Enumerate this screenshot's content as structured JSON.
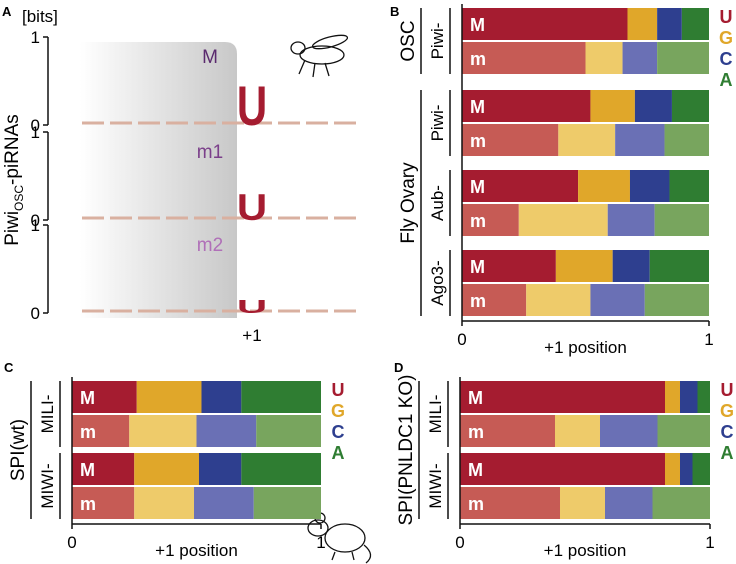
{
  "chart_data": [
    {
      "type": "logo",
      "panel": "A",
      "unit": "[bits]",
      "y_label": {
        "main": "Piwi",
        "sub": "OSC",
        "suffix": "-piRNAs"
      },
      "x_label": "+1",
      "ylim": [
        0,
        1
      ],
      "yticks": [
        0,
        1
      ],
      "color": "#a51c30",
      "rows": [
        {
          "name": "M",
          "letter": "U",
          "value": 0.45,
          "label_color": "#5a2a6e"
        },
        {
          "name": "m1",
          "letter": "U",
          "value": 0.3,
          "label_color": "#7b3f8a"
        },
        {
          "name": "m2",
          "letter": "U",
          "value": 0.15,
          "label_color": "#b070b8"
        }
      ]
    },
    {
      "type": "stacked_bar",
      "panel": "B",
      "xlabel": "+1 position",
      "xlim": [
        0,
        1
      ],
      "xticks": [
        0,
        1
      ],
      "series": [
        {
          "name": "U",
          "color": "#a51c30",
          "light_color": "#c65b55"
        },
        {
          "name": "G",
          "color": "#e0a72a",
          "light_color": "#eecb6a"
        },
        {
          "name": "C",
          "color": "#2e3f8f",
          "light_color": "#6a70b5"
        },
        {
          "name": "A",
          "color": "#2f7d32",
          "light_color": "#78a55e"
        }
      ],
      "groups": [
        {
          "name": "OSC",
          "proteins": [
            {
              "name": "Piwi-",
              "bars": [
                {
                  "label": "M",
                  "values": [
                    0.67,
                    0.12,
                    0.1,
                    0.11
                  ]
                },
                {
                  "label": "m",
                  "values": [
                    0.5,
                    0.15,
                    0.14,
                    0.21
                  ]
                }
              ]
            }
          ]
        },
        {
          "name": "Fly Ovary",
          "proteins": [
            {
              "name": "Piwi-",
              "bars": [
                {
                  "label": "M",
                  "values": [
                    0.52,
                    0.18,
                    0.15,
                    0.15
                  ]
                },
                {
                  "label": "m",
                  "values": [
                    0.39,
                    0.23,
                    0.2,
                    0.18
                  ]
                }
              ]
            },
            {
              "name": "Aub-",
              "bars": [
                {
                  "label": "M",
                  "values": [
                    0.47,
                    0.21,
                    0.16,
                    0.16
                  ]
                },
                {
                  "label": "m",
                  "values": [
                    0.23,
                    0.36,
                    0.19,
                    0.22
                  ]
                }
              ]
            },
            {
              "name": "Ago3-",
              "bars": [
                {
                  "label": "M",
                  "values": [
                    0.38,
                    0.23,
                    0.15,
                    0.24
                  ]
                },
                {
                  "label": "m",
                  "values": [
                    0.26,
                    0.26,
                    0.22,
                    0.26
                  ]
                }
              ]
            }
          ]
        }
      ]
    },
    {
      "type": "stacked_bar",
      "panel": "C",
      "xlabel": "+1 position",
      "xlim": [
        0,
        1
      ],
      "xticks": [
        0,
        1
      ],
      "series": [
        {
          "name": "U",
          "color": "#a51c30",
          "light_color": "#c65b55"
        },
        {
          "name": "G",
          "color": "#e0a72a",
          "light_color": "#eecb6a"
        },
        {
          "name": "C",
          "color": "#2e3f8f",
          "light_color": "#6a70b5"
        },
        {
          "name": "A",
          "color": "#2f7d32",
          "light_color": "#78a55e"
        }
      ],
      "groups": [
        {
          "name": "SPI(wt)",
          "proteins": [
            {
              "name": "MILI-",
              "bars": [
                {
                  "label": "M",
                  "values": [
                    0.26,
                    0.26,
                    0.16,
                    0.32
                  ]
                },
                {
                  "label": "m",
                  "values": [
                    0.23,
                    0.27,
                    0.24,
                    0.26
                  ]
                }
              ]
            },
            {
              "name": "MIWI-",
              "bars": [
                {
                  "label": "M",
                  "values": [
                    0.25,
                    0.26,
                    0.17,
                    0.32
                  ]
                },
                {
                  "label": "m",
                  "values": [
                    0.25,
                    0.24,
                    0.24,
                    0.27
                  ]
                }
              ]
            }
          ]
        }
      ]
    },
    {
      "type": "stacked_bar",
      "panel": "D",
      "xlabel": "+1 position",
      "xlim": [
        0,
        1
      ],
      "xticks": [
        0,
        1
      ],
      "series": [
        {
          "name": "U",
          "color": "#a51c30",
          "light_color": "#c65b55"
        },
        {
          "name": "G",
          "color": "#e0a72a",
          "light_color": "#eecb6a"
        },
        {
          "name": "C",
          "color": "#2e3f8f",
          "light_color": "#6a70b5"
        },
        {
          "name": "A",
          "color": "#2f7d32",
          "light_color": "#78a55e"
        }
      ],
      "groups": [
        {
          "name": "SPI(PNLDC1 KO)",
          "proteins": [
            {
              "name": "MILI-",
              "bars": [
                {
                  "label": "M",
                  "values": [
                    0.82,
                    0.06,
                    0.07,
                    0.05
                  ]
                },
                {
                  "label": "m",
                  "values": [
                    0.38,
                    0.18,
                    0.23,
                    0.21
                  ]
                }
              ]
            },
            {
              "name": "MIWI-",
              "bars": [
                {
                  "label": "M",
                  "values": [
                    0.82,
                    0.06,
                    0.05,
                    0.07
                  ]
                },
                {
                  "label": "m",
                  "values": [
                    0.4,
                    0.18,
                    0.19,
                    0.23
                  ]
                }
              ]
            }
          ]
        }
      ]
    }
  ]
}
